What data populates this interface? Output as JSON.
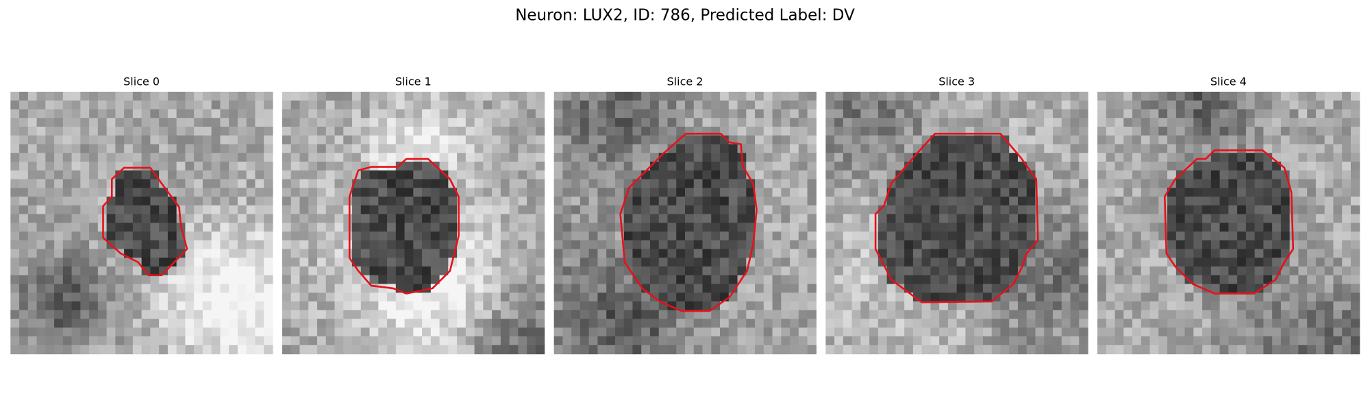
{
  "title": "Neuron: LUX2, ID: 786, Predicted Label: DV",
  "panels": [
    {
      "title": "Slice 0"
    },
    {
      "title": "Slice 1"
    },
    {
      "title": "Slice 2"
    },
    {
      "title": "Slice 3"
    },
    {
      "title": "Slice 4"
    }
  ]
}
